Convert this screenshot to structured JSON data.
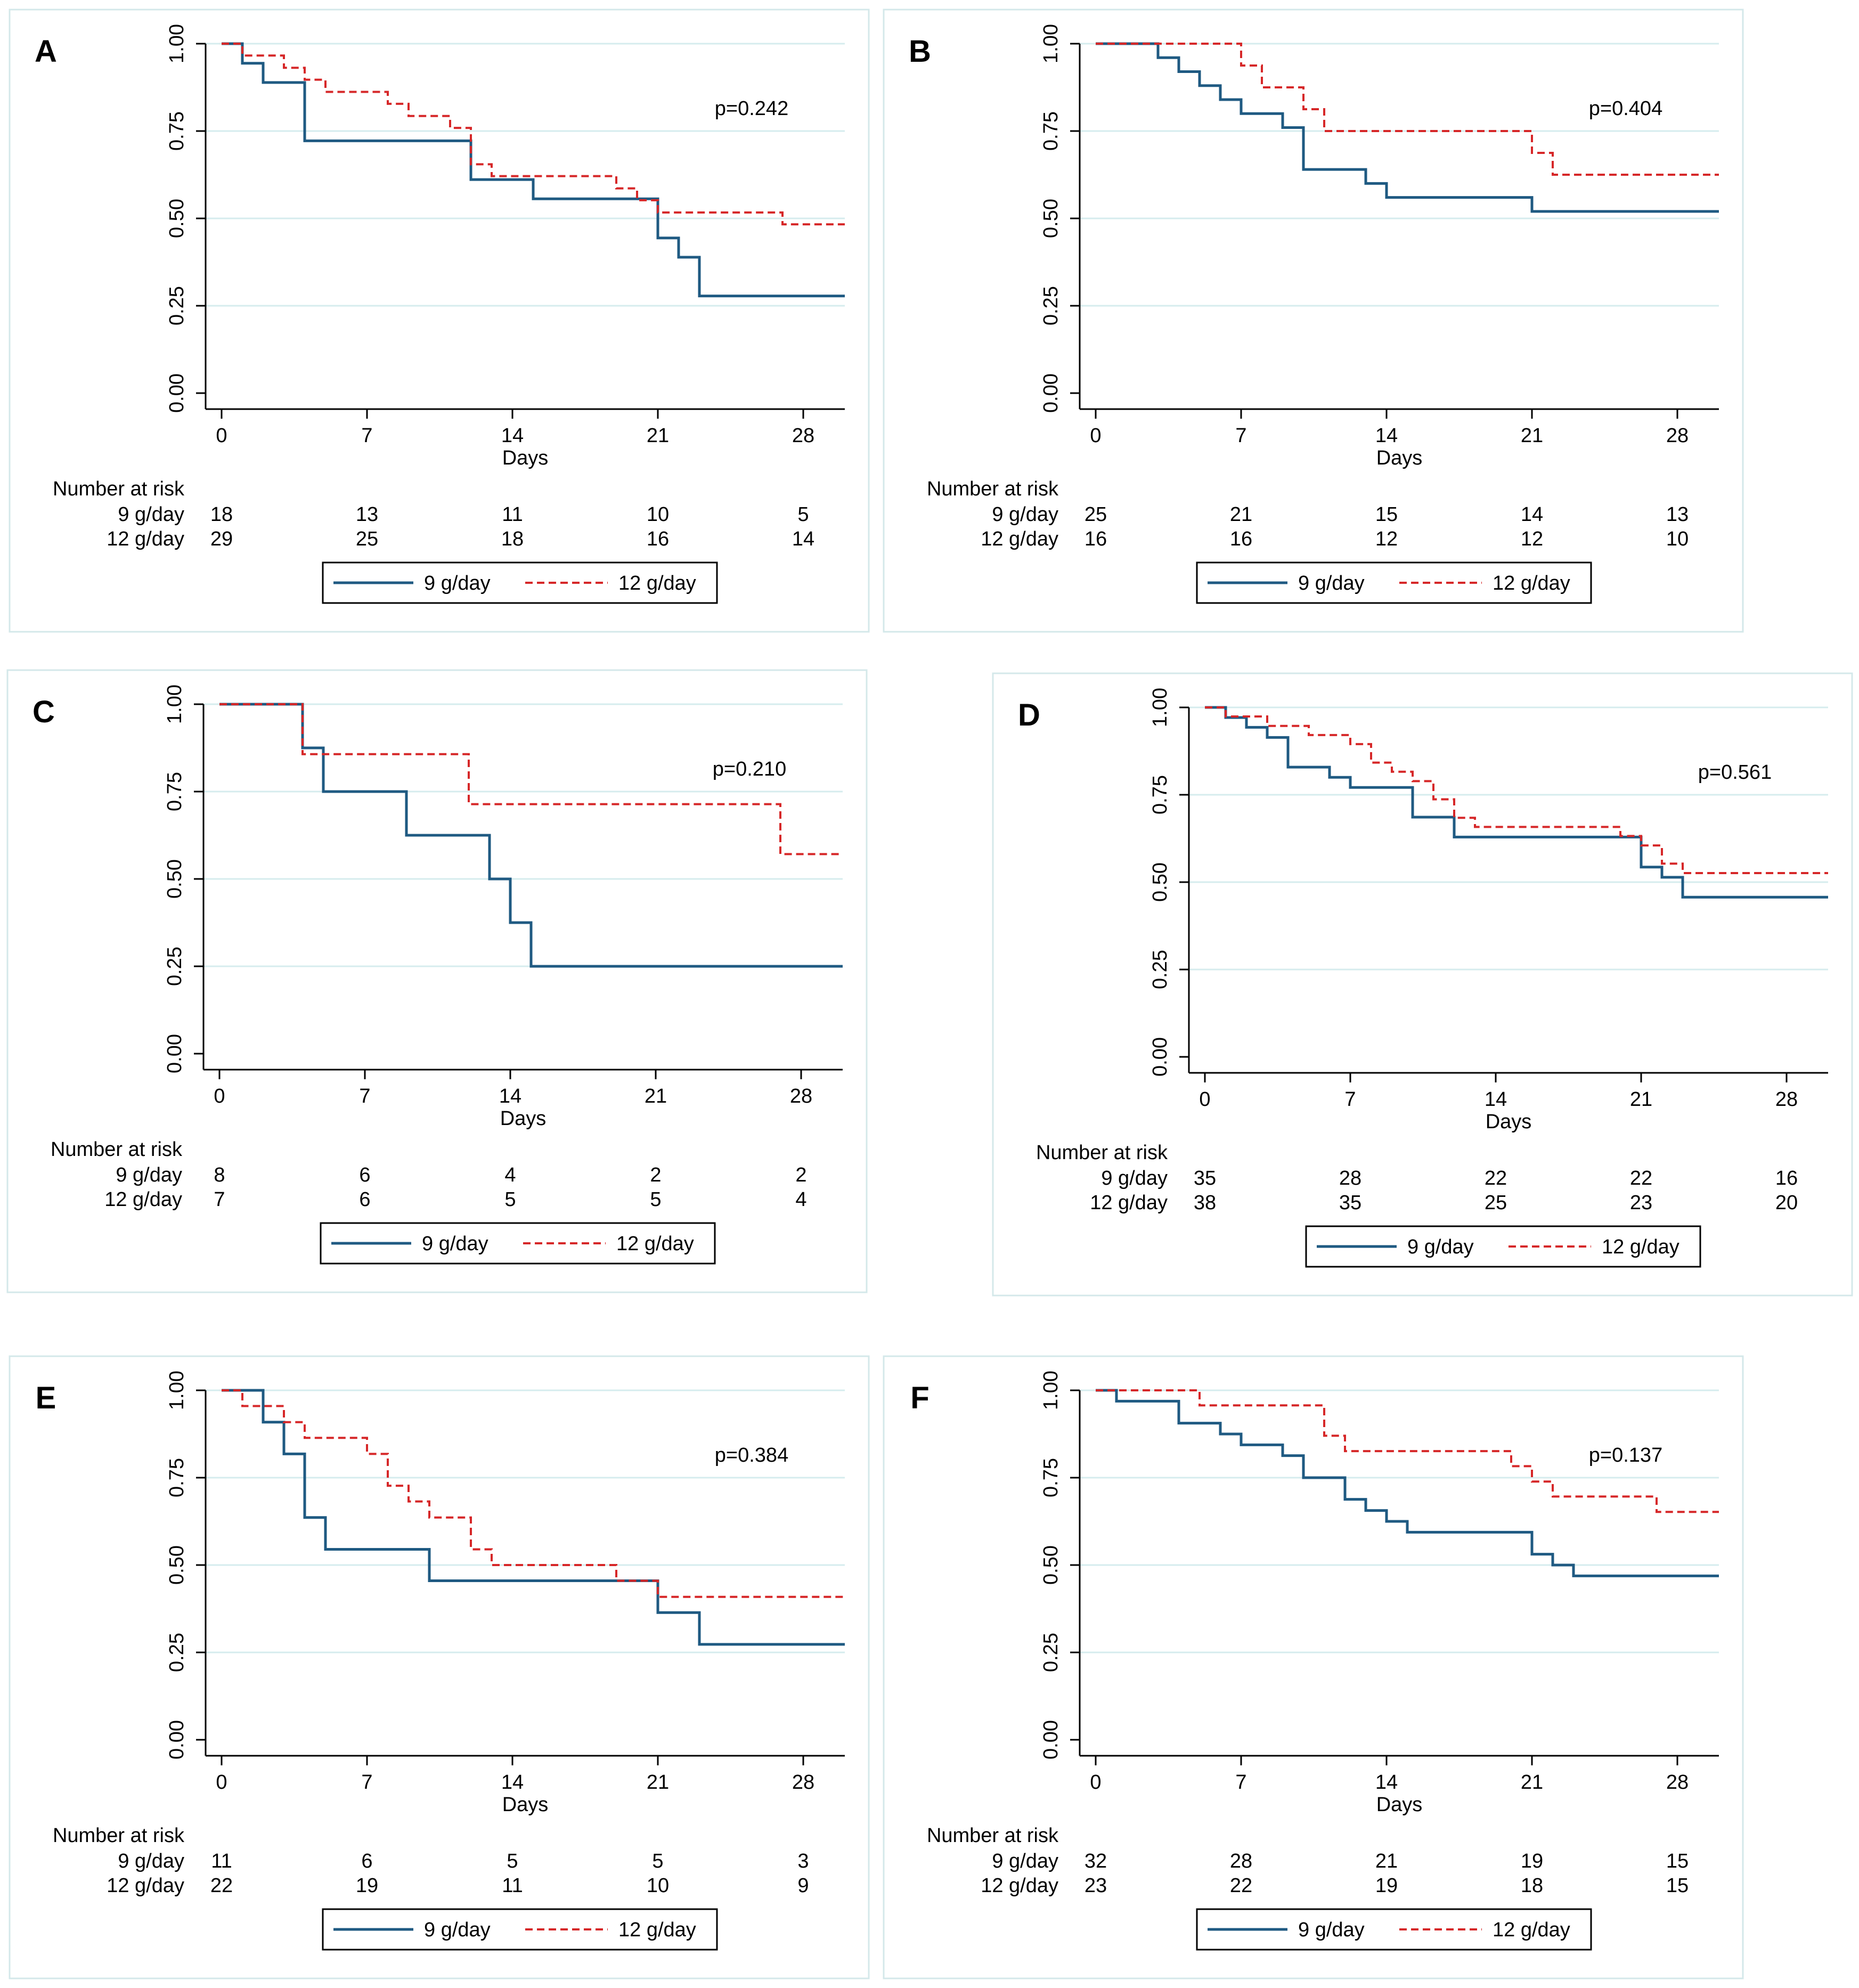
{
  "figure": {
    "legend_labels": [
      "9 g/day",
      "12 g/day"
    ],
    "colors": {
      "series_a": "#1f5a82",
      "series_b": "#d62728"
    }
  },
  "chart_data": [
    {
      "type": "line",
      "panel_label": "A",
      "p_value": "p=0.242",
      "xlabel": "Days",
      "ylabel": "",
      "xticks": [
        "0",
        "7",
        "14",
        "21",
        "28"
      ],
      "yticks": [
        "0.00",
        "0.25",
        "0.50",
        "0.75",
        "1.00"
      ],
      "xlim": [
        0,
        30
      ],
      "ylim": [
        0,
        1
      ],
      "risk_title": "Number at risk",
      "series": [
        {
          "name": "9 g/day",
          "risk": [
            "18",
            "13",
            "11",
            "10",
            "5"
          ],
          "steps": [
            [
              0,
              1.0
            ],
            [
              1,
              0.944
            ],
            [
              2,
              0.889
            ],
            [
              4,
              0.722
            ],
            [
              12,
              0.611
            ],
            [
              15,
              0.556
            ],
            [
              21,
              0.444
            ],
            [
              22,
              0.389
            ],
            [
              23,
              0.278
            ],
            [
              30,
              0.278
            ]
          ]
        },
        {
          "name": "12 g/day",
          "risk": [
            "29",
            "25",
            "18",
            "16",
            "14"
          ],
          "steps": [
            [
              0,
              1.0
            ],
            [
              1,
              0.966
            ],
            [
              3,
              0.931
            ],
            [
              4,
              0.897
            ],
            [
              5,
              0.862
            ],
            [
              8,
              0.828
            ],
            [
              9,
              0.793
            ],
            [
              11,
              0.759
            ],
            [
              12,
              0.655
            ],
            [
              13,
              0.621
            ],
            [
              19,
              0.586
            ],
            [
              20,
              0.552
            ],
            [
              21,
              0.517
            ],
            [
              27,
              0.483
            ],
            [
              30,
              0.483
            ]
          ]
        }
      ]
    },
    {
      "type": "line",
      "panel_label": "B",
      "p_value": "p=0.404",
      "xlabel": "Days",
      "ylabel": "",
      "xticks": [
        "0",
        "7",
        "14",
        "21",
        "28"
      ],
      "yticks": [
        "0.00",
        "0.25",
        "0.50",
        "0.75",
        "1.00"
      ],
      "xlim": [
        0,
        30
      ],
      "ylim": [
        0,
        1
      ],
      "risk_title": "Number at risk",
      "series": [
        {
          "name": "9 g/day",
          "risk": [
            "25",
            "21",
            "15",
            "14",
            "13"
          ],
          "steps": [
            [
              0,
              1.0
            ],
            [
              3,
              0.96
            ],
            [
              4,
              0.92
            ],
            [
              5,
              0.88
            ],
            [
              6,
              0.84
            ],
            [
              7,
              0.8
            ],
            [
              9,
              0.76
            ],
            [
              10,
              0.64
            ],
            [
              13,
              0.6
            ],
            [
              14,
              0.56
            ],
            [
              21,
              0.52
            ],
            [
              30,
              0.52
            ]
          ]
        },
        {
          "name": "12 g/day",
          "risk": [
            "16",
            "16",
            "12",
            "12",
            "10"
          ],
          "steps": [
            [
              0,
              1.0
            ],
            [
              7,
              0.9375
            ],
            [
              8,
              0.875
            ],
            [
              10,
              0.8125
            ],
            [
              11,
              0.75
            ],
            [
              21,
              0.6875
            ],
            [
              22,
              0.625
            ],
            [
              30,
              0.625
            ]
          ]
        }
      ]
    },
    {
      "type": "line",
      "panel_label": "C",
      "p_value": "p=0.210",
      "xlabel": "Days",
      "ylabel": "",
      "xticks": [
        "0",
        "7",
        "14",
        "21",
        "28"
      ],
      "yticks": [
        "0.00",
        "0.25",
        "0.50",
        "0.75",
        "1.00"
      ],
      "xlim": [
        0,
        30
      ],
      "ylim": [
        0,
        1
      ],
      "risk_title": "Number at risk",
      "series": [
        {
          "name": "9 g/day",
          "risk": [
            "8",
            "6",
            "4",
            "2",
            "2"
          ],
          "steps": [
            [
              0,
              1.0
            ],
            [
              4,
              0.875
            ],
            [
              5,
              0.75
            ],
            [
              9,
              0.625
            ],
            [
              13,
              0.5
            ],
            [
              14,
              0.375
            ],
            [
              15,
              0.25
            ],
            [
              30,
              0.25
            ]
          ]
        },
        {
          "name": "12 g/day",
          "risk": [
            "7",
            "6",
            "5",
            "5",
            "4"
          ],
          "steps": [
            [
              0,
              1.0
            ],
            [
              4,
              0.857
            ],
            [
              12,
              0.714
            ],
            [
              27,
              0.571
            ],
            [
              30,
              0.571
            ]
          ]
        }
      ]
    },
    {
      "type": "line",
      "panel_label": "D",
      "p_value": "p=0.561",
      "xlabel": "Days",
      "ylabel": "",
      "xticks": [
        "0",
        "7",
        "14",
        "21",
        "28"
      ],
      "yticks": [
        "0.00",
        "0.25",
        "0.50",
        "0.75",
        "1.00"
      ],
      "xlim": [
        0,
        30
      ],
      "ylim": [
        0,
        1
      ],
      "risk_title": "Number at risk",
      "series": [
        {
          "name": "9 g/day",
          "risk": [
            "35",
            "28",
            "22",
            "22",
            "16"
          ],
          "steps": [
            [
              0,
              1.0
            ],
            [
              1,
              0.971
            ],
            [
              2,
              0.943
            ],
            [
              3,
              0.914
            ],
            [
              4,
              0.829
            ],
            [
              6,
              0.8
            ],
            [
              7,
              0.771
            ],
            [
              10,
              0.686
            ],
            [
              12,
              0.629
            ],
            [
              21,
              0.543
            ],
            [
              22,
              0.514
            ],
            [
              23,
              0.457
            ],
            [
              30,
              0.457
            ]
          ]
        },
        {
          "name": "12 g/day",
          "risk": [
            "38",
            "35",
            "25",
            "23",
            "20"
          ],
          "steps": [
            [
              0,
              1.0
            ],
            [
              1,
              0.974
            ],
            [
              3,
              0.947
            ],
            [
              5,
              0.921
            ],
            [
              7,
              0.895
            ],
            [
              8,
              0.842
            ],
            [
              9,
              0.816
            ],
            [
              10,
              0.789
            ],
            [
              11,
              0.737
            ],
            [
              12,
              0.684
            ],
            [
              13,
              0.658
            ],
            [
              20,
              0.632
            ],
            [
              21,
              0.605
            ],
            [
              22,
              0.553
            ],
            [
              23,
              0.526
            ],
            [
              30,
              0.526
            ]
          ]
        }
      ]
    },
    {
      "type": "line",
      "panel_label": "E",
      "p_value": "p=0.384",
      "xlabel": "Days",
      "ylabel": "",
      "xticks": [
        "0",
        "7",
        "14",
        "21",
        "28"
      ],
      "yticks": [
        "0.00",
        "0.25",
        "0.50",
        "0.75",
        "1.00"
      ],
      "xlim": [
        0,
        30
      ],
      "ylim": [
        0,
        1
      ],
      "risk_title": "Number at risk",
      "series": [
        {
          "name": "9 g/day",
          "risk": [
            "11",
            "6",
            "5",
            "5",
            "3"
          ],
          "steps": [
            [
              0,
              1.0
            ],
            [
              2,
              0.909
            ],
            [
              3,
              0.818
            ],
            [
              4,
              0.636
            ],
            [
              5,
              0.545
            ],
            [
              10,
              0.455
            ],
            [
              21,
              0.364
            ],
            [
              23,
              0.273
            ],
            [
              30,
              0.273
            ]
          ]
        },
        {
          "name": "12 g/day",
          "risk": [
            "22",
            "19",
            "11",
            "10",
            "9"
          ],
          "steps": [
            [
              0,
              1.0
            ],
            [
              1,
              0.955
            ],
            [
              3,
              0.909
            ],
            [
              4,
              0.864
            ],
            [
              7,
              0.818
            ],
            [
              8,
              0.727
            ],
            [
              9,
              0.682
            ],
            [
              10,
              0.636
            ],
            [
              12,
              0.545
            ],
            [
              13,
              0.5
            ],
            [
              19,
              0.455
            ],
            [
              21,
              0.409
            ],
            [
              30,
              0.409
            ]
          ]
        }
      ]
    },
    {
      "type": "line",
      "panel_label": "F",
      "p_value": "p=0.137",
      "xlabel": "Days",
      "ylabel": "",
      "xticks": [
        "0",
        "7",
        "14",
        "21",
        "28"
      ],
      "yticks": [
        "0.00",
        "0.25",
        "0.50",
        "0.75",
        "1.00"
      ],
      "xlim": [
        0,
        30
      ],
      "ylim": [
        0,
        1
      ],
      "risk_title": "Number at risk",
      "series": [
        {
          "name": "9 g/day",
          "risk": [
            "32",
            "28",
            "21",
            "19",
            "15"
          ],
          "steps": [
            [
              0,
              1.0
            ],
            [
              1,
              0.969
            ],
            [
              4,
              0.906
            ],
            [
              6,
              0.875
            ],
            [
              7,
              0.844
            ],
            [
              9,
              0.813
            ],
            [
              10,
              0.75
            ],
            [
              12,
              0.688
            ],
            [
              13,
              0.656
            ],
            [
              14,
              0.625
            ],
            [
              15,
              0.594
            ],
            [
              21,
              0.531
            ],
            [
              22,
              0.5
            ],
            [
              23,
              0.469
            ],
            [
              30,
              0.469
            ]
          ]
        },
        {
          "name": "12 g/day",
          "risk": [
            "23",
            "22",
            "19",
            "18",
            "15"
          ],
          "steps": [
            [
              0,
              1.0
            ],
            [
              5,
              0.957
            ],
            [
              11,
              0.87
            ],
            [
              12,
              0.826
            ],
            [
              20,
              0.783
            ],
            [
              21,
              0.739
            ],
            [
              22,
              0.696
            ],
            [
              27,
              0.652
            ],
            [
              30,
              0.652
            ]
          ]
        }
      ]
    }
  ]
}
